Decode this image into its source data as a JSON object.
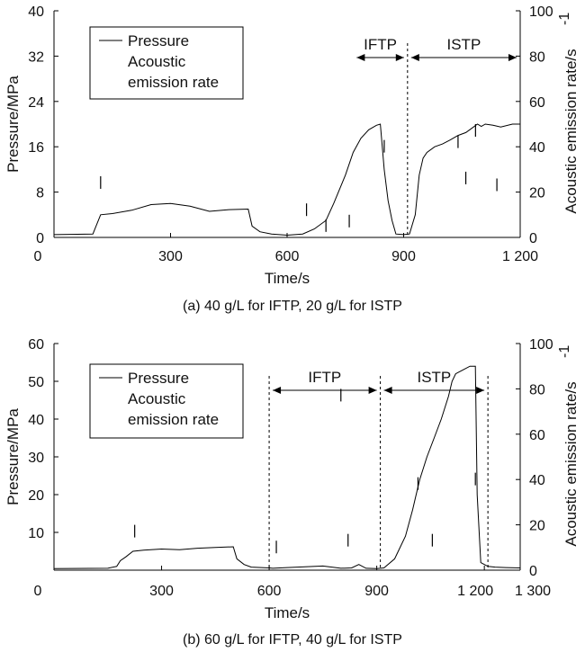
{
  "chart_data": [
    {
      "type": "line",
      "caption": "(a) 40 g/L for IFTP, 20 g/L for ISTP",
      "xlabel": "Time/s",
      "ylabel": "Pressure/MPa",
      "y2label": "Acoustic emission rate/s",
      "y2label_sup": "-1",
      "xlim": [
        0,
        1200
      ],
      "ylim": [
        0,
        40
      ],
      "y2lim": [
        0,
        100
      ],
      "xticks": [
        0,
        300,
        600,
        900,
        1200
      ],
      "xtick_labels": [
        "0",
        "300",
        "600",
        "900",
        "1 200"
      ],
      "yticks": [
        0,
        8,
        16,
        24,
        32,
        40
      ],
      "y2ticks": [
        0,
        20,
        40,
        60,
        80,
        100
      ],
      "legend": [
        "Pressure",
        "Acoustic emission rate"
      ],
      "legend_position": "top-left",
      "vlines": [
        910
      ],
      "spans": [
        {
          "label": "IFTP",
          "start": 770,
          "end": 910
        },
        {
          "label": "ISTP",
          "start": 910,
          "end": 1200
        }
      ],
      "series": [
        {
          "name": "Pressure",
          "x": [
            0,
            100,
            120,
            150,
            200,
            250,
            300,
            350,
            400,
            450,
            500,
            510,
            530,
            560,
            600,
            640,
            670,
            700,
            720,
            750,
            770,
            790,
            810,
            820,
            830,
            840,
            850,
            860,
            870,
            880,
            900,
            915,
            930,
            940,
            950,
            960,
            980,
            1000,
            1020,
            1040,
            1060,
            1070,
            1090,
            1100,
            1110,
            1130,
            1150,
            1180,
            1200
          ],
          "y": [
            0.5,
            0.6,
            4.0,
            4.2,
            4.8,
            5.8,
            6.0,
            5.5,
            4.6,
            4.9,
            5.0,
            2.0,
            1.0,
            0.6,
            0.4,
            0.6,
            1.5,
            3.0,
            6.0,
            11.0,
            15.0,
            17.5,
            19.0,
            19.4,
            19.8,
            20.0,
            12.0,
            6.5,
            3.0,
            0.6,
            0.5,
            0.6,
            4.0,
            11.0,
            14.0,
            15.0,
            16.0,
            16.5,
            17.2,
            18.0,
            18.5,
            19.0,
            20.0,
            19.6,
            20.0,
            19.8,
            19.5,
            20.0,
            20.0
          ]
        },
        {
          "name": "Acoustic emission rate",
          "x": [
            120,
            650,
            700,
            760,
            850,
            1040,
            1060,
            1085,
            1140
          ],
          "y": [
            27,
            15,
            8,
            10,
            43,
            45,
            29,
            50,
            26
          ]
        }
      ]
    },
    {
      "type": "line",
      "caption": "(b) 60 g/L for IFTP, 40 g/L for ISTP",
      "xlabel": "Time/s",
      "ylabel": "Pressure/MPa",
      "y2label": "Acoustic emission rate/s",
      "y2label_sup": "-1",
      "xlim": [
        0,
        1300
      ],
      "ylim": [
        0,
        60
      ],
      "y2lim": [
        0,
        100
      ],
      "xticks": [
        0,
        300,
        600,
        900,
        1200,
        1300
      ],
      "xtick_labels": [
        "0",
        "300",
        "600",
        "900",
        "1 200",
        "1 300"
      ],
      "yticks": [
        10,
        20,
        30,
        40,
        50,
        60
      ],
      "y2ticks": [
        0,
        20,
        40,
        60,
        80,
        100
      ],
      "legend": [
        "Pressure",
        "Acoustic emission rate"
      ],
      "legend_position": "top-left",
      "vlines": [
        600,
        910,
        1210
      ],
      "spans": [
        {
          "label": "IFTP",
          "start": 600,
          "end": 910
        },
        {
          "label": "ISTP",
          "start": 910,
          "end": 1210
        }
      ],
      "series": [
        {
          "name": "Pressure",
          "x": [
            0,
            150,
            175,
            185,
            200,
            220,
            250,
            300,
            350,
            400,
            450,
            500,
            510,
            530,
            550,
            600,
            610,
            650,
            700,
            750,
            800,
            830,
            850,
            870,
            900,
            920,
            950,
            980,
            1000,
            1010,
            1020,
            1040,
            1060,
            1080,
            1100,
            1110,
            1120,
            1140,
            1160,
            1175,
            1180,
            1190,
            1200,
            1210,
            1230,
            1260,
            1300
          ],
          "y": [
            0.4,
            0.5,
            1.0,
            2.5,
            3.5,
            5.0,
            5.3,
            5.6,
            5.4,
            5.8,
            6.0,
            6.2,
            3.0,
            1.5,
            0.8,
            0.6,
            0.5,
            0.7,
            0.9,
            1.1,
            0.5,
            0.6,
            1.5,
            0.5,
            0.4,
            0.6,
            3.0,
            9.0,
            16.0,
            20.0,
            24.0,
            30.0,
            35.0,
            40.0,
            46.0,
            50.0,
            52.0,
            53.0,
            54.0,
            54.0,
            20.0,
            2.0,
            1.5,
            1.0,
            0.8,
            0.7,
            0.6
          ]
        },
        {
          "name": "Acoustic emission rate",
          "x": [
            225,
            620,
            800,
            820,
            1015,
            1055,
            1175
          ],
          "y": [
            20,
            13,
            80,
            16,
            41,
            16,
            43
          ]
        }
      ]
    }
  ]
}
